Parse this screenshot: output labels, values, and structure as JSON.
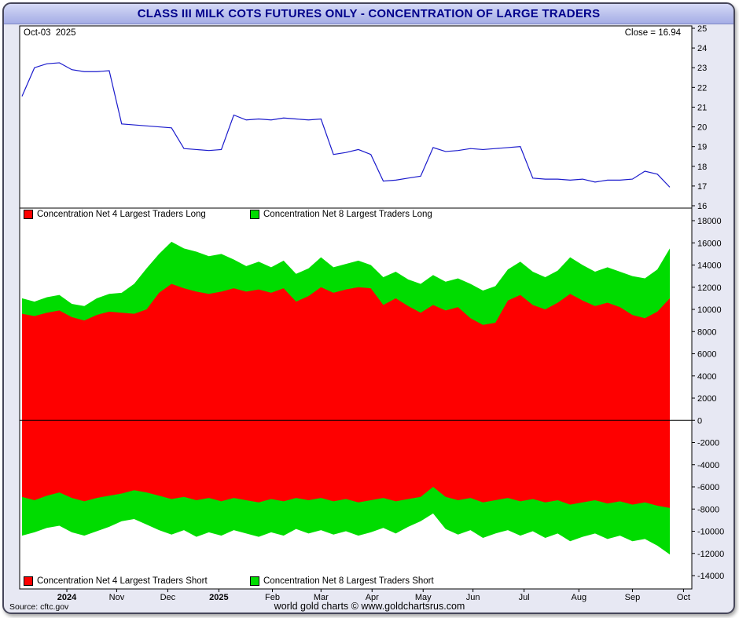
{
  "header": {
    "title": "CLASS III MILK COTS FUTURES ONLY - CONCENTRATION OF LARGE TRADERS"
  },
  "price_panel": {
    "date_label": "Oct-03  2025",
    "close_label": "Close = 16.94"
  },
  "legend_top": [
    {
      "color": "#fe0000",
      "label": "Concentration Net 4 Largest Traders Long"
    },
    {
      "color": "#00dc00",
      "label": "Concentration Net 8 Largest Traders Long"
    }
  ],
  "legend_bottom": [
    {
      "color": "#fe0000",
      "label": "Concentration Net 4 Largest Traders Short"
    },
    {
      "color": "#00dc00",
      "label": "Concentration Net 8 Largest Traders Short"
    }
  ],
  "footer": {
    "source": "Source: cftc.gov",
    "credit": "world gold charts © www.goldchartsrus.com"
  },
  "colors": {
    "price_line": "#1a1acc",
    "red": "#fe0000",
    "green": "#00dc00",
    "title_text": "#00008b",
    "panel_bg": "#ffffff",
    "frame_bg": "#e7e8f3"
  },
  "chart_data": {
    "type": "mixed",
    "title": "CLASS III MILK COTS FUTURES ONLY - CONCENTRATION OF LARGE TRADERS",
    "x_unit": "weekly COT reports, Sep 2024 - Oct 2025",
    "x_ticks": [
      {
        "label": "2024",
        "pos": 3.6,
        "bold": true
      },
      {
        "label": "Nov",
        "pos": 7.6
      },
      {
        "label": "Dec",
        "pos": 11.7
      },
      {
        "label": "2025",
        "pos": 15.8,
        "bold": true
      },
      {
        "label": "Feb",
        "pos": 20.1
      },
      {
        "label": "Mar",
        "pos": 24.0
      },
      {
        "label": "Apr",
        "pos": 28.1
      },
      {
        "label": "May",
        "pos": 32.2
      },
      {
        "label": "Jun",
        "pos": 36.2
      },
      {
        "label": "Jul",
        "pos": 40.3
      },
      {
        "label": "Aug",
        "pos": 44.7
      },
      {
        "label": "Sep",
        "pos": 49.0
      },
      {
        "label": "Oct",
        "pos": 53.1
      }
    ],
    "price_panel": {
      "type": "line",
      "name": "Class III Milk futures price",
      "color": "#1a1acc",
      "ylim": [
        16,
        25
      ],
      "ytick_step": 1,
      "close": 16.94,
      "values": [
        21.55,
        23.0,
        23.2,
        23.25,
        22.9,
        22.8,
        22.8,
        22.85,
        20.15,
        20.1,
        20.05,
        20.0,
        19.95,
        18.9,
        18.85,
        18.8,
        18.85,
        20.6,
        20.35,
        20.4,
        20.35,
        20.45,
        20.4,
        20.35,
        20.4,
        18.6,
        18.7,
        18.85,
        18.6,
        17.25,
        17.3,
        17.4,
        17.5,
        18.95,
        18.75,
        18.8,
        18.9,
        18.85,
        18.9,
        18.95,
        19.0,
        17.4,
        17.35,
        17.35,
        17.3,
        17.35,
        17.2,
        17.3,
        17.3,
        17.35,
        17.75,
        17.6,
        16.94
      ]
    },
    "concentration_panel": {
      "type": "area",
      "ylim": [
        -14000,
        18000
      ],
      "ytick_step": 2000,
      "series": [
        {
          "name": "Concentration Net 8 Largest Traders Long",
          "color": "#00dc00",
          "values": [
            11000,
            10700,
            11100,
            11300,
            10500,
            10300,
            11000,
            11400,
            11500,
            12300,
            13700,
            15000,
            16100,
            15500,
            15200,
            14800,
            15000,
            14500,
            13900,
            14300,
            13800,
            14400,
            13200,
            13700,
            14700,
            13800,
            14100,
            14400,
            14000,
            12900,
            13400,
            12700,
            12300,
            13100,
            12500,
            12800,
            12300,
            11700,
            12100,
            13600,
            14300,
            13400,
            12900,
            13500,
            14700,
            14000,
            13400,
            13800,
            13400,
            13000,
            12800,
            13600,
            15500
          ]
        },
        {
          "name": "Concentration Net 4 Largest Traders Long",
          "color": "#fe0000",
          "values": [
            9600,
            9400,
            9700,
            9900,
            9300,
            9000,
            9500,
            9800,
            9700,
            9600,
            10000,
            11500,
            12300,
            11900,
            11600,
            11400,
            11600,
            11900,
            11600,
            11800,
            11500,
            11900,
            10700,
            11200,
            12000,
            11500,
            11800,
            12000,
            11900,
            10400,
            11000,
            10300,
            9700,
            10400,
            9900,
            10200,
            9200,
            8600,
            8800,
            10800,
            11300,
            10400,
            10000,
            10600,
            11400,
            10800,
            10300,
            10600,
            10200,
            9500,
            9200,
            9800,
            11000
          ]
        },
        {
          "name": "Concentration Net 8 Largest Traders Short",
          "color": "#00dc00",
          "values": [
            -10400,
            -10100,
            -9700,
            -9500,
            -10100,
            -10400,
            -10000,
            -9600,
            -9100,
            -8900,
            -9400,
            -9900,
            -10300,
            -9900,
            -10500,
            -10100,
            -10400,
            -9900,
            -10200,
            -10500,
            -10100,
            -10400,
            -9800,
            -10200,
            -9900,
            -10300,
            -10000,
            -10400,
            -10100,
            -9700,
            -10200,
            -9600,
            -9100,
            -8400,
            -9800,
            -10300,
            -9900,
            -10600,
            -10200,
            -9900,
            -10400,
            -10000,
            -10600,
            -10200,
            -10900,
            -10500,
            -10200,
            -10700,
            -10400,
            -10900,
            -10700,
            -11300,
            -12100
          ]
        },
        {
          "name": "Concentration Net 4 Largest Traders Short",
          "color": "#fe0000",
          "values": [
            -6900,
            -7200,
            -6800,
            -6500,
            -7000,
            -7300,
            -7000,
            -6800,
            -6600,
            -6300,
            -6500,
            -6800,
            -7100,
            -6900,
            -7200,
            -7000,
            -7300,
            -7000,
            -7200,
            -7400,
            -7100,
            -7300,
            -7000,
            -7200,
            -7000,
            -7300,
            -7100,
            -7400,
            -7200,
            -7000,
            -7300,
            -7100,
            -6900,
            -6000,
            -6900,
            -7200,
            -7000,
            -7400,
            -7200,
            -7000,
            -7300,
            -7100,
            -7400,
            -7200,
            -7600,
            -7400,
            -7200,
            -7500,
            -7300,
            -7600,
            -7400,
            -7700,
            -7900
          ]
        }
      ]
    }
  }
}
